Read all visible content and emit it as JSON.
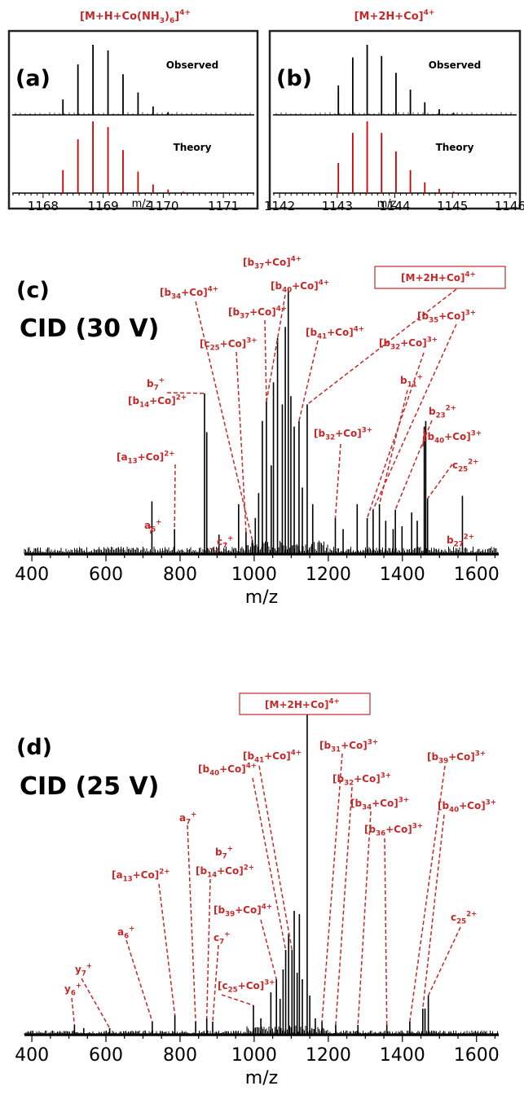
{
  "colors": {
    "observed": "#000000",
    "theory": "#cc0000",
    "annotation": "#c62828",
    "frame": "#222222"
  },
  "chart_data": [
    {
      "panel": "(a)",
      "type": "line",
      "title": "[M+H+Co(NH3)6]4+",
      "xlabel": "m/z",
      "xlim": [
        1167.5,
        1171.5
      ],
      "xticks": [
        "1168",
        "1169",
        "1170",
        "1171"
      ],
      "series": [
        {
          "name": "Observed",
          "x": [
            1168.33,
            1168.58,
            1168.83,
            1169.08,
            1169.33,
            1169.58,
            1169.83,
            1170.08
          ],
          "values": [
            0.22,
            0.72,
            1.0,
            0.92,
            0.58,
            0.32,
            0.12,
            0.04
          ]
        },
        {
          "name": "Theory",
          "x": [
            1168.33,
            1168.58,
            1168.83,
            1169.08,
            1169.33,
            1169.58,
            1169.83,
            1170.08,
            1170.33
          ],
          "values": [
            0.32,
            0.75,
            1.0,
            0.92,
            0.6,
            0.3,
            0.12,
            0.05,
            0.02
          ]
        }
      ]
    },
    {
      "panel": "(b)",
      "type": "line",
      "title": "[M+2H+Co]4+",
      "xlabel": "m/z",
      "xlim": [
        1141.9,
        1146.1
      ],
      "xticks": [
        "1142",
        "1143",
        "1144",
        "1145",
        "1146"
      ],
      "series": [
        {
          "name": "Observed",
          "x": [
            1143.02,
            1143.27,
            1143.52,
            1143.77,
            1144.02,
            1144.27,
            1144.52,
            1144.77,
            1145.02
          ],
          "values": [
            0.42,
            0.82,
            1.0,
            0.84,
            0.6,
            0.36,
            0.18,
            0.08,
            0.03
          ]
        },
        {
          "name": "Theory",
          "x": [
            1143.02,
            1143.27,
            1143.52,
            1143.77,
            1144.02,
            1144.27,
            1144.52,
            1144.77,
            1145.02
          ],
          "values": [
            0.42,
            0.84,
            1.0,
            0.84,
            0.58,
            0.32,
            0.15,
            0.06,
            0.02
          ]
        }
      ]
    },
    {
      "panel": "(c)",
      "type": "bar",
      "title": "CID (30 V)",
      "xlabel": "m/z",
      "xlim": [
        380,
        1660
      ],
      "xticks": [
        "400",
        "600",
        "800",
        "1000",
        "1200",
        "1400",
        "1600"
      ],
      "peaks": {
        "x": [
          724,
          785,
          866,
          872,
          905,
          958,
          978,
          995,
          1003,
          1012,
          1022,
          1033,
          1046,
          1052,
          1063,
          1076,
          1084,
          1092,
          1099,
          1108,
          1121,
          1130,
          1143,
          1158,
          1219,
          1240,
          1278,
          1305,
          1321,
          1338,
          1355,
          1375,
          1381,
          1399,
          1425,
          1440,
          1459,
          1463,
          1468,
          1562
        ],
        "values": [
          0.19,
          0.09,
          0.58,
          0.44,
          0.07,
          0.18,
          0.08,
          0.05,
          0.13,
          0.22,
          0.48,
          0.55,
          0.32,
          0.62,
          0.78,
          0.54,
          0.82,
          0.96,
          0.57,
          0.46,
          0.48,
          0.24,
          0.54,
          0.18,
          0.13,
          0.09,
          0.18,
          0.13,
          0.16,
          0.18,
          0.12,
          0.09,
          0.16,
          0.1,
          0.15,
          0.12,
          0.46,
          0.48,
          0.2,
          0.21
        ]
      },
      "annotations": [
        "[b37+Co]4+",
        "[b40+Co]4+",
        "[b34+Co]4+",
        "[b37+Co]4+",
        "[c25+Co]3+",
        "[b41+Co]4+",
        "[M+2H+Co]4+",
        "[b32+Co]3+",
        "[b35+Co]3+",
        "b7+",
        "[b14+Co]2+",
        "b11+",
        "b23 2+",
        "[b32+Co]3+",
        "[b40+Co]3+",
        "c25 2+",
        "[a13+Co]2+",
        "a6+",
        "c7+",
        "b27 2+"
      ]
    },
    {
      "panel": "(d)",
      "type": "bar",
      "title": "CID (25 V)",
      "xlabel": "m/z",
      "xlim": [
        380,
        1660
      ],
      "xticks": [
        "400",
        "600",
        "800",
        "1000",
        "1200",
        "1400",
        "1600"
      ],
      "peaks": {
        "x": [
          515,
          540,
          610,
          725,
          786,
          842,
          872,
          888,
          998,
          1018,
          1045,
          1060,
          1070,
          1078,
          1085,
          1093,
          1102,
          1108,
          1116,
          1122,
          1130,
          1143,
          1150,
          1165,
          1183,
          1220,
          1280,
          1358,
          1420,
          1455,
          1461,
          1470
        ],
        "values": [
          0.03,
          0.02,
          0.02,
          0.04,
          0.06,
          0.04,
          0.05,
          0.04,
          0.09,
          0.05,
          0.13,
          0.17,
          0.11,
          0.2,
          0.26,
          0.31,
          0.26,
          0.38,
          0.19,
          0.37,
          0.17,
          1.0,
          0.12,
          0.05,
          0.04,
          0.03,
          0.03,
          0.03,
          0.04,
          0.08,
          0.08,
          0.12
        ]
      },
      "annotations": [
        "[b41+Co]4+",
        "[b31+Co]3+",
        "[b39+Co]3+",
        "[b32+Co]3+",
        "[b40+Co]4+",
        "[b34+Co]3+",
        "[b40+Co]3+",
        "[b36+Co]3+",
        "a7+",
        "b7+",
        "[b14+Co]2+",
        "[a13+Co]2+",
        "[b39+Co]4+",
        "c25 2+",
        "c7+",
        "a6+",
        "y7+",
        "y6+",
        "[c25+Co]3+",
        "[M+2H+Co]4+"
      ]
    }
  ]
}
